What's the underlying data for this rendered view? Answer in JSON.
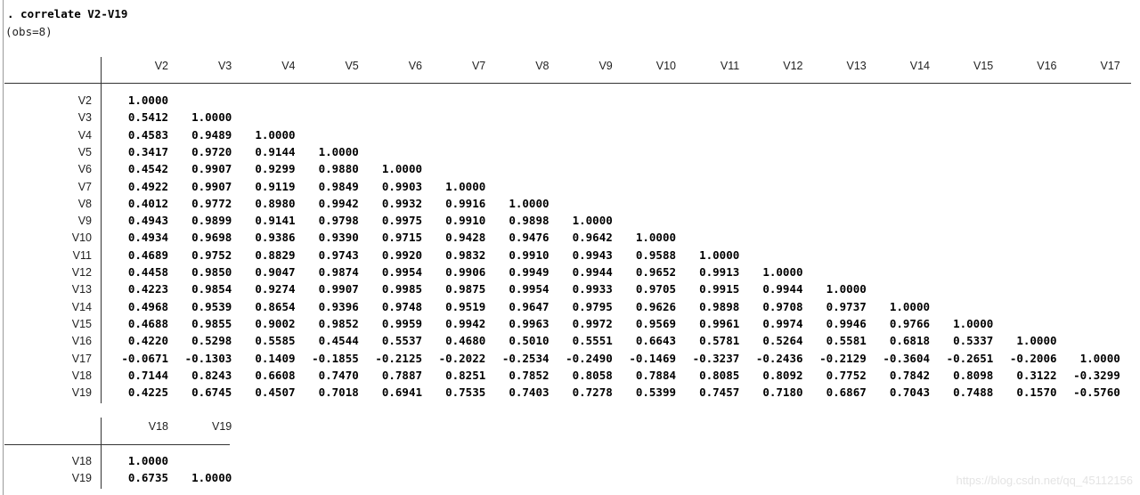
{
  "command": ". correlate V2-V19",
  "obs_note": "(obs=8)",
  "watermark": "https://blog.csdn.net/qq_45112156",
  "table1": {
    "columns": [
      "V2",
      "V3",
      "V4",
      "V5",
      "V6",
      "V7",
      "V8",
      "V9",
      "V10",
      "V11",
      "V12",
      "V13",
      "V14",
      "V15",
      "V16",
      "V17"
    ],
    "rows": [
      {
        "label": "V2",
        "values": [
          "1.0000"
        ]
      },
      {
        "label": "V3",
        "values": [
          "0.5412",
          "1.0000"
        ]
      },
      {
        "label": "V4",
        "values": [
          "0.4583",
          "0.9489",
          "1.0000"
        ]
      },
      {
        "label": "V5",
        "values": [
          "0.3417",
          "0.9720",
          "0.9144",
          "1.0000"
        ]
      },
      {
        "label": "V6",
        "values": [
          "0.4542",
          "0.9907",
          "0.9299",
          "0.9880",
          "1.0000"
        ]
      },
      {
        "label": "V7",
        "values": [
          "0.4922",
          "0.9907",
          "0.9119",
          "0.9849",
          "0.9903",
          "1.0000"
        ]
      },
      {
        "label": "V8",
        "values": [
          "0.4012",
          "0.9772",
          "0.8980",
          "0.9942",
          "0.9932",
          "0.9916",
          "1.0000"
        ]
      },
      {
        "label": "V9",
        "values": [
          "0.4943",
          "0.9899",
          "0.9141",
          "0.9798",
          "0.9975",
          "0.9910",
          "0.9898",
          "1.0000"
        ]
      },
      {
        "label": "V10",
        "values": [
          "0.4934",
          "0.9698",
          "0.9386",
          "0.9390",
          "0.9715",
          "0.9428",
          "0.9476",
          "0.9642",
          "1.0000"
        ]
      },
      {
        "label": "V11",
        "values": [
          "0.4689",
          "0.9752",
          "0.8829",
          "0.9743",
          "0.9920",
          "0.9832",
          "0.9910",
          "0.9943",
          "0.9588",
          "1.0000"
        ]
      },
      {
        "label": "V12",
        "values": [
          "0.4458",
          "0.9850",
          "0.9047",
          "0.9874",
          "0.9954",
          "0.9906",
          "0.9949",
          "0.9944",
          "0.9652",
          "0.9913",
          "1.0000"
        ]
      },
      {
        "label": "V13",
        "values": [
          "0.4223",
          "0.9854",
          "0.9274",
          "0.9907",
          "0.9985",
          "0.9875",
          "0.9954",
          "0.9933",
          "0.9705",
          "0.9915",
          "0.9944",
          "1.0000"
        ]
      },
      {
        "label": "V14",
        "values": [
          "0.4968",
          "0.9539",
          "0.8654",
          "0.9396",
          "0.9748",
          "0.9519",
          "0.9647",
          "0.9795",
          "0.9626",
          "0.9898",
          "0.9708",
          "0.9737",
          "1.0000"
        ]
      },
      {
        "label": "V15",
        "values": [
          "0.4688",
          "0.9855",
          "0.9002",
          "0.9852",
          "0.9959",
          "0.9942",
          "0.9963",
          "0.9972",
          "0.9569",
          "0.9961",
          "0.9974",
          "0.9946",
          "0.9766",
          "1.0000"
        ]
      },
      {
        "label": "V16",
        "values": [
          "0.4220",
          "0.5298",
          "0.5585",
          "0.4544",
          "0.5537",
          "0.4680",
          "0.5010",
          "0.5551",
          "0.6643",
          "0.5781",
          "0.5264",
          "0.5581",
          "0.6818",
          "0.5337",
          "1.0000"
        ]
      },
      {
        "label": "V17",
        "values": [
          "-0.0671",
          "-0.1303",
          "0.1409",
          "-0.1855",
          "-0.2125",
          "-0.2022",
          "-0.2534",
          "-0.2490",
          "-0.1469",
          "-0.3237",
          "-0.2436",
          "-0.2129",
          "-0.3604",
          "-0.2651",
          "-0.2006",
          "1.0000"
        ]
      },
      {
        "label": "V18",
        "values": [
          "0.7144",
          "0.8243",
          "0.6608",
          "0.7470",
          "0.7887",
          "0.8251",
          "0.7852",
          "0.8058",
          "0.7884",
          "0.8085",
          "0.8092",
          "0.7752",
          "0.7842",
          "0.8098",
          "0.3122",
          "-0.3299"
        ]
      },
      {
        "label": "V19",
        "values": [
          "0.4225",
          "0.6745",
          "0.4507",
          "0.7018",
          "0.6941",
          "0.7535",
          "0.7403",
          "0.7278",
          "0.5399",
          "0.7457",
          "0.7180",
          "0.6867",
          "0.7043",
          "0.7488",
          "0.1570",
          "-0.5760"
        ]
      }
    ]
  },
  "table2": {
    "columns": [
      "V18",
      "V19"
    ],
    "rows": [
      {
        "label": "V18",
        "values": [
          "1.0000"
        ]
      },
      {
        "label": "V19",
        "values": [
          "0.6735",
          "1.0000"
        ]
      }
    ]
  }
}
